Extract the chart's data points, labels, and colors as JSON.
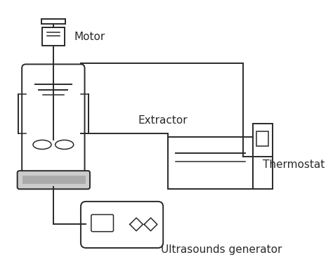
{
  "background_color": "#ffffff",
  "line_color": "#2a2a2a",
  "gray_dark": "#888888",
  "gray_light": "#cccccc",
  "gray_mid": "#aaaaaa",
  "labels": {
    "motor": "Motor",
    "extractor": "Extractor",
    "thermostat": "Thermostat",
    "ultrasound": "Ultrasounds generator"
  },
  "figsize": [
    4.74,
    3.83
  ],
  "dpi": 100,
  "font_size": 10
}
